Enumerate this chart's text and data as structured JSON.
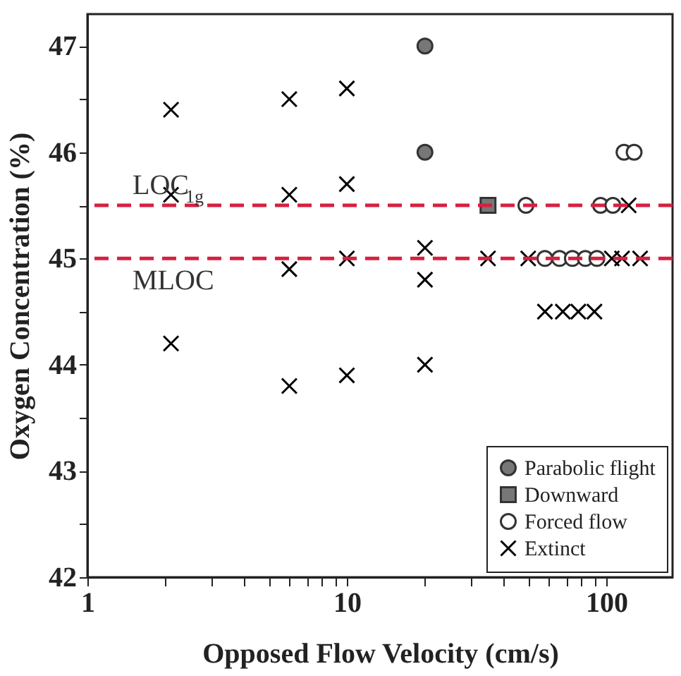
{
  "chart_data": {
    "type": "scatter",
    "xlabel": "Opposed Flow Velocity (cm/s)",
    "ylabel": "Oxygen Concentration (%)",
    "log": "x",
    "xlim": [
      1,
      180
    ],
    "xticks": [
      1,
      {
        "value": 2,
        "label": null
      },
      {
        "value": 3,
        "label": null
      },
      {
        "value": 4,
        "label": null
      },
      {
        "value": 5,
        "label": null
      },
      {
        "value": 6,
        "label": null
      },
      {
        "value": 7,
        "label": null
      },
      {
        "value": 8,
        "label": null
      },
      {
        "value": 9,
        "label": null
      },
      10,
      {
        "value": 20,
        "label": null
      },
      {
        "value": 30,
        "label": null
      },
      {
        "value": 40,
        "label": null
      },
      {
        "value": 50,
        "label": null
      },
      {
        "value": 60,
        "label": null
      },
      {
        "value": 70,
        "label": null
      },
      {
        "value": 80,
        "label": null
      },
      {
        "value": 90,
        "label": null
      },
      100
    ],
    "ylim": [
      42,
      47.3
    ],
    "yticks": [
      42,
      {
        "value": 42.5,
        "label": null
      },
      43,
      {
        "value": 43.5,
        "label": null
      },
      44,
      {
        "value": 44.5,
        "label": null
      },
      45,
      {
        "value": 45.5,
        "label": null
      },
      46,
      {
        "value": 46.5,
        "label": null
      },
      47
    ],
    "grid": false,
    "legend": "bottom right",
    "ref_lines": [
      {
        "axis": "y",
        "value": 45.5,
        "label": "LOC$_{1g}$",
        "color": "#d62040",
        "line_style": "dashed"
      },
      {
        "axis": "y",
        "value": 45,
        "label": "MLOC",
        "color": "#d62040",
        "line_style": "dashed"
      }
    ],
    "series": [
      {
        "name": "Parabolic flight",
        "color": "#777777",
        "marker": "circle",
        "x": [
          20,
          20
        ],
        "values": [
          47.0,
          46.0
        ]
      },
      {
        "name": "Downward",
        "color": "#777777",
        "marker": "square",
        "x": [
          35
        ],
        "values": [
          45.5
        ]
      },
      {
        "name": "Forced flow",
        "color": "#ffffff",
        "marker": "circle",
        "x": [
          49,
          58,
          66,
          74,
          83,
          92,
          95,
          106,
          117,
          128
        ],
        "values": [
          45.5,
          45,
          45,
          45,
          45,
          45,
          45.5,
          45.5,
          46,
          46
        ]
      },
      {
        "name": "Extinct",
        "color": "#000000",
        "marker": "cross",
        "x": [
          2.1,
          2.1,
          2.1,
          6,
          6,
          6,
          6,
          10,
          10,
          10,
          10,
          20,
          20,
          20,
          35,
          50,
          105,
          115,
          135,
          58,
          68,
          78,
          90,
          122
        ],
        "values": [
          46.4,
          45.6,
          44.2,
          46.5,
          45.6,
          44.9,
          43.8,
          46.6,
          45.7,
          45.0,
          43.9,
          45.1,
          44.8,
          44.0,
          45.0,
          45.0,
          45.0,
          45.0,
          45.0,
          44.5,
          44.5,
          44.5,
          44.5,
          45.5
        ]
      }
    ]
  }
}
